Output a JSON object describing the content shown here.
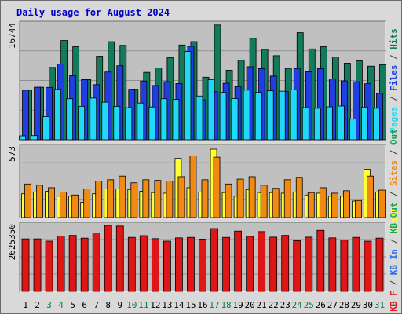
{
  "chart_data": {
    "type": "bar",
    "title": "Daily usage for August 2024",
    "categories": [
      "1",
      "2",
      "3",
      "4",
      "5",
      "6",
      "7",
      "8",
      "9",
      "10",
      "11",
      "12",
      "13",
      "14",
      "15",
      "16",
      "17",
      "18",
      "19",
      "20",
      "21",
      "22",
      "23",
      "24",
      "25",
      "26",
      "27",
      "28",
      "29",
      "30",
      "31"
    ],
    "weekend_days": [
      "3",
      "4",
      "10",
      "11",
      "17",
      "18",
      "24",
      "25",
      "31"
    ],
    "colors": {
      "hits": "#137a5c",
      "files": "#1f3fe0",
      "pages": "#22d8f8",
      "visits": "#ffff33",
      "sites": "#f08a12",
      "kbout": "#18a35a",
      "kbin": "#2b6ee8",
      "kbf": "#e01616",
      "plot_bg": "#c0c0c0",
      "frame_bg": "#d9d9d9",
      "grid": "#909090",
      "day_normal": "#000000",
      "day_weekend": "#0a7a3a",
      "title": "#0000c8"
    },
    "panels": [
      {
        "id": "hits",
        "ymax_label": "16744",
        "ylim": [
          0,
          16744
        ],
        "legend": [
          {
            "text": "Pages",
            "color": "#22d8f8"
          },
          {
            "text": " / ",
            "color": "#404040"
          },
          {
            "text": "Files",
            "color": "#1f3fe0"
          },
          {
            "text": " / ",
            "color": "#404040"
          },
          {
            "text": "Hits",
            "color": "#137a5c"
          }
        ],
        "series": [
          {
            "key": "hits",
            "values": [
              7200,
              7620,
              10500,
              14400,
              13500,
              8730,
              12130,
              14230,
              13700,
              7330,
              9780,
              10430,
              11900,
              13750,
              14240,
              9080,
              16650,
              10090,
              11530,
              14720,
              13110,
              12200,
              10360,
              15540,
              13180,
              13500,
              12000,
              11110,
              11450,
              10680,
              10900
            ]
          },
          {
            "key": "files",
            "values": [
              7200,
              7620,
              7600,
              11000,
              9300,
              8730,
              7990,
              9830,
              10740,
              7330,
              8520,
              7870,
              8440,
              8150,
              13560,
              5800,
              6980,
              8200,
              7710,
              10600,
              10320,
              9240,
              6990,
              10340,
              9860,
              10320,
              8840,
              8540,
              8420,
              8130,
              6740
            ]
          },
          {
            "key": "pages",
            "values": [
              570,
              600,
              3350,
              7300,
              5950,
              4860,
              6050,
              5450,
              4850,
              4660,
              5330,
              4760,
              5950,
              5850,
              12800,
              6350,
              8700,
              6870,
              5980,
              7200,
              6870,
              7100,
              7050,
              7250,
              4670,
              4570,
              4780,
              4900,
              3000,
              4750,
              4570
            ]
          }
        ]
      },
      {
        "id": "visits",
        "ymax_label": "573",
        "ylim": [
          0,
          573
        ],
        "legend": [
          {
            "text": "Visits",
            "color": "#ffff33"
          },
          {
            "text": " / ",
            "color": "#404040"
          },
          {
            "text": "Sites",
            "color": "#f08a12"
          },
          {
            "text": " / ",
            "color": "#404040"
          },
          {
            "text": "Out",
            "color": "#18a35a"
          }
        ],
        "series": [
          {
            "key": "visits",
            "values": [
              195,
              210,
              215,
              175,
              175,
              125,
              195,
              235,
              235,
              230,
              215,
              205,
              200,
              485,
              245,
              210,
              560,
              205,
              175,
              230,
              205,
              205,
              200,
              210,
              185,
              200,
              175,
              175,
              135,
              395,
              210
            ]
          },
          {
            "key": "sites",
            "values": [
              275,
              265,
              245,
              210,
              185,
              235,
              300,
              310,
              340,
              285,
              310,
              305,
              300,
              335,
              505,
              310,
              495,
              275,
              315,
              335,
              265,
              240,
              310,
              330,
              205,
              245,
              200,
              220,
              140,
              340,
              225
            ]
          }
        ]
      },
      {
        "id": "kbytes",
        "ymax_label": "2625350",
        "ylim": [
          0,
          2625350
        ],
        "legend": [
          {
            "text": "KB F",
            "color": "#e01616"
          },
          {
            "text": " / ",
            "color": "#404040"
          },
          {
            "text": "KB In",
            "color": "#2b6ee8"
          },
          {
            "text": " / ",
            "color": "#404040"
          },
          {
            "text": "KB Out",
            "color": "#18a35a"
          }
        ],
        "series": [
          {
            "key": "kbf",
            "values": [
              2090000,
              2090000,
              2000000,
              2200000,
              2230000,
              2120000,
              2330000,
              2625350,
              2600000,
              2150000,
              2220000,
              2100000,
              2000000,
              2130000,
              2150000,
              2080000,
              2500000,
              2150000,
              2400000,
              2190000,
              2380000,
              2160000,
              2230000,
              2020000,
              2160000,
              2430000,
              2130000,
              2040000,
              2150000,
              2000000,
              2120000
            ]
          }
        ]
      }
    ]
  }
}
